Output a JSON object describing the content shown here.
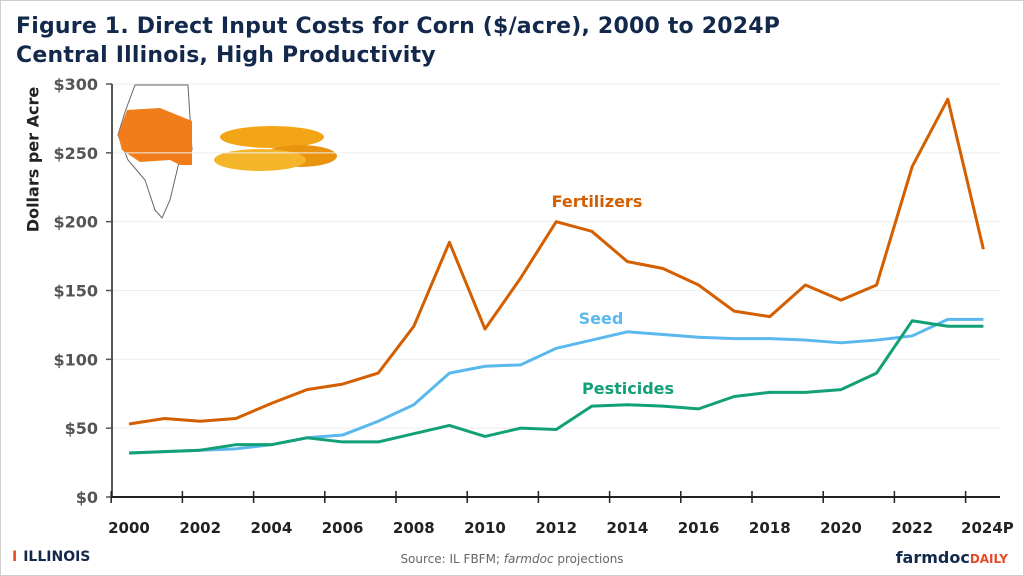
{
  "header": {
    "title_line1": "Figure 1. Direct Input Costs for Corn ($/acre), 2000 to 2024P",
    "title_line2": "Central Illinois, High Productivity"
  },
  "footer": {
    "illinois_logo": "ILLINOIS",
    "source_prefix": "Source: IL FBFM; ",
    "source_italic": "farmdoc",
    "source_suffix": " projections",
    "brand_main": "farmdoc",
    "brand_accent": "DAILY"
  },
  "chart_data": {
    "type": "line",
    "title": "Figure 1. Direct Input Costs for Corn ($/acre), 2000 to 2024P",
    "subtitle": "Central Illinois, High Productivity",
    "xlabel": "",
    "ylabel": "Dollars per Acre",
    "ylim": [
      0,
      300
    ],
    "yticks": [
      "$0",
      "$50",
      "$100",
      "$150",
      "$200",
      "$250",
      "$300"
    ],
    "grid": true,
    "x": [
      "2000",
      "2001",
      "2002",
      "2003",
      "2004",
      "2005",
      "2006",
      "2007",
      "2008",
      "2009",
      "2010",
      "2011",
      "2012",
      "2013",
      "2014",
      "2015",
      "2016",
      "2017",
      "2018",
      "2019",
      "2020",
      "2021",
      "2022",
      "2023",
      "2024P"
    ],
    "xtick_labels": [
      "2000",
      "2002",
      "2004",
      "2006",
      "2008",
      "2010",
      "2012",
      "2014",
      "2016",
      "2018",
      "2020",
      "2022",
      "2024P"
    ],
    "series": [
      {
        "name": "Fertilizers",
        "color": "#D45F00",
        "values": [
          53,
          57,
          55,
          57,
          68,
          78,
          82,
          90,
          124,
          185,
          122,
          159,
          200,
          193,
          171,
          166,
          154,
          135,
          131,
          154,
          143,
          154,
          240,
          289,
          180
        ]
      },
      {
        "name": "Seed",
        "color": "#5BB8EE",
        "values": [
          32,
          33,
          34,
          35,
          38,
          43,
          45,
          55,
          67,
          90,
          95,
          96,
          108,
          114,
          120,
          118,
          116,
          115,
          115,
          114,
          112,
          114,
          117,
          129,
          129
        ]
      },
      {
        "name": "Pesticides",
        "color": "#12A077",
        "values": [
          32,
          33,
          34,
          38,
          38,
          43,
          40,
          40,
          46,
          52,
          44,
          50,
          49,
          66,
          67,
          66,
          64,
          73,
          76,
          76,
          78,
          90,
          128,
          124,
          124
        ]
      }
    ]
  },
  "colors": {
    "title": "#13294B",
    "illinois_orange": "#E84A27"
  }
}
